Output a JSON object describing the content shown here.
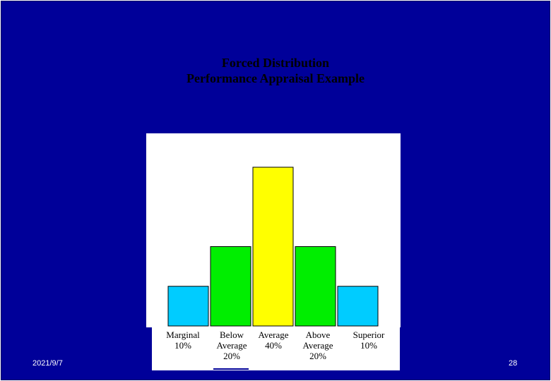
{
  "slide": {
    "title_line1": "Forced Distribution",
    "title_line2": "Performance Appraisal Example",
    "date": "2021/9/7",
    "page_number": "28"
  },
  "colors": {
    "background": "#000099",
    "cyan": "#00ccff",
    "green": "#00ee00",
    "yellow": "#ffff00"
  },
  "chart_data": {
    "type": "bar",
    "title": "Forced Distribution Performance Appraisal Example",
    "categories": [
      "Marginal",
      "Below Average",
      "Average",
      "Above Average",
      "Superior"
    ],
    "category_lines": [
      [
        "Marginal",
        "10%"
      ],
      [
        "Below",
        "Average",
        "20%"
      ],
      [
        "Average",
        "40%"
      ],
      [
        "Above",
        "Average",
        "20%"
      ],
      [
        "Superior",
        "10%"
      ]
    ],
    "values": [
      10,
      20,
      40,
      20,
      10
    ],
    "bar_colors": [
      "#00ccff",
      "#00ee00",
      "#ffff00",
      "#00ee00",
      "#00ccff"
    ],
    "xlabel": "",
    "ylabel": "",
    "ylim": [
      0,
      40
    ],
    "grid": false,
    "legend": "none"
  }
}
